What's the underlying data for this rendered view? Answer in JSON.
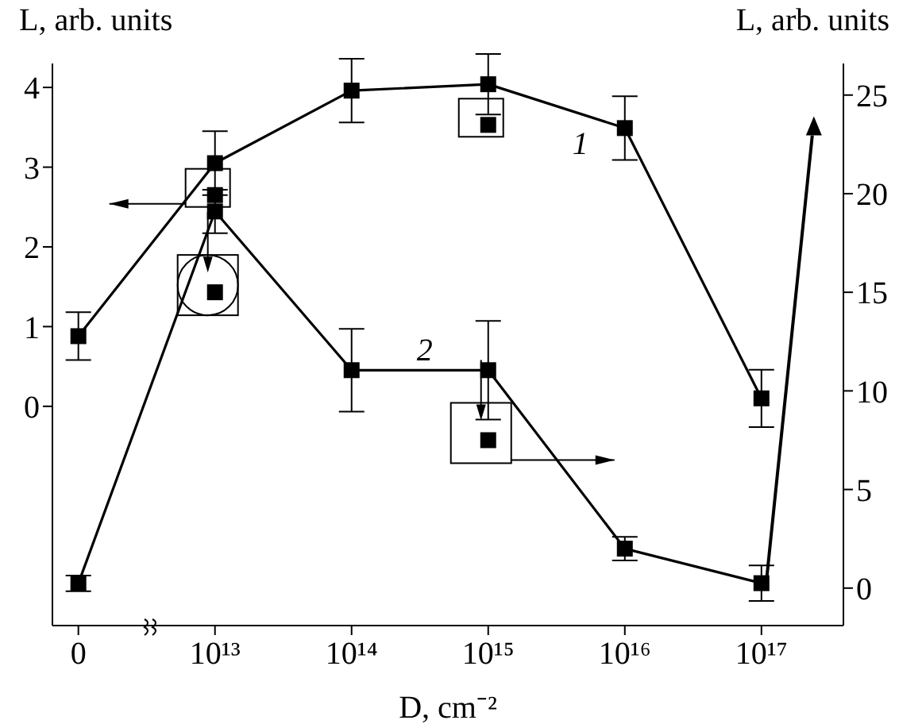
{
  "chart_data": {
    "type": "line",
    "xlabel": "D, cm⁻²",
    "ylabel": "L, arb. units",
    "y2label": "L, arb. units",
    "categories": [
      "0",
      "10¹³",
      "10¹⁴",
      "10¹⁵",
      "10¹⁶",
      "10¹⁷"
    ],
    "ylim": [
      -2.75,
      4.3
    ],
    "yticks": [
      0,
      1,
      2,
      3,
      4
    ],
    "y2lim": [
      -1.9,
      26.6
    ],
    "y2ticks": [
      0,
      5,
      10,
      15,
      20,
      25
    ],
    "marker": "square",
    "grid": false,
    "legend": false,
    "series": [
      {
        "name": "1",
        "color": "#000000",
        "values": [
          0.88,
          3.05,
          3.96,
          4.04,
          3.49,
          0.1
        ],
        "errors": [
          0.3,
          0.4,
          0.4,
          0.38,
          0.4,
          0.36
        ]
      },
      {
        "name": "2",
        "color": "#000000",
        "axis": "y2",
        "values": [
          0.24,
          19.1,
          11.05,
          11.05,
          2.0,
          0.25
        ],
        "errors": [
          0.4,
          1.1,
          2.1,
          2.5,
          0.6,
          0.9
        ]
      },
      {
        "type": "scatter",
        "color": "#000000",
        "values": [
          null,
          2.65,
          null,
          3.53,
          null,
          null
        ]
      },
      {
        "type": "scatter",
        "color": "#000000",
        "axis": "y2",
        "values": [
          null,
          15.0,
          null,
          7.5,
          null,
          null
        ]
      }
    ]
  }
}
